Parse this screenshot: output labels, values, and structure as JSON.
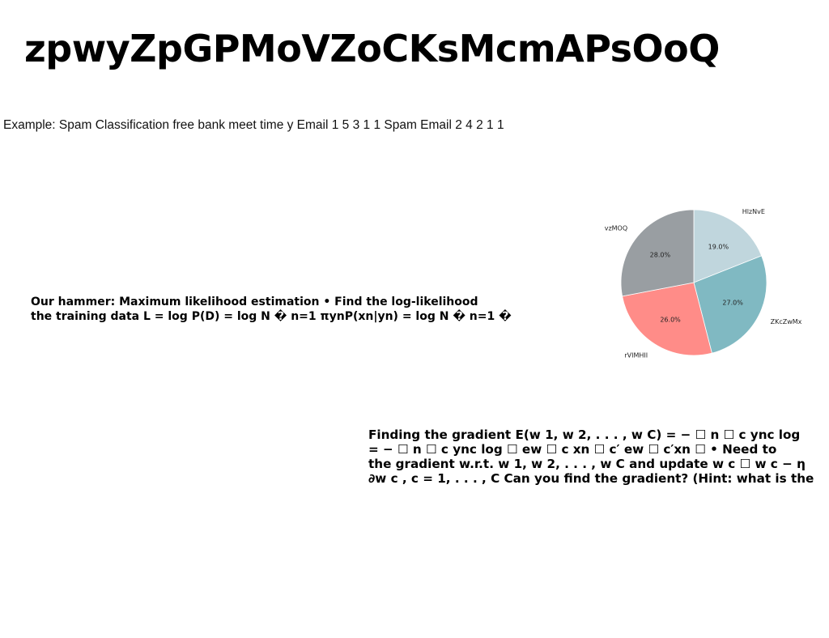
{
  "slide": {
    "title": "zpwyZpGPMoVZoCKsMcmAPsOoQ",
    "example": "Example: Spam Classification free bank meet time y Email 1 5 3 1 1 Spam Email 2 4 2 1 1",
    "hammer_lines": [
      "Our hammer: Maximum likelihood estimation • Find the log-likelihood",
      "the training data L = log P(D) = log N � n=1 πynP(xn|yn) = log N � n=1 �"
    ],
    "gradient_lines": [
      "Finding the gradient E(w 1, w 2, . . . , w C) = − ☐ n ☐ c ync log",
      "= − ☐ n ☐ c ync log ☐ ew ☐ c xn ☐ c′ ew ☐ c′xn ☐ • Need to",
      "the gradient w.r.t. w 1, w 2, . . . , w C and update w c ☐ w c − η",
      "∂w c , c = 1, . . . , C Can you find the gradient? (Hint: what is the"
    ]
  },
  "chart_data": {
    "type": "pie",
    "categories": [
      "HlzNvE",
      "ZKcZwMx",
      "rVIMHII",
      "vzMOQ"
    ],
    "values": [
      19.0,
      27.0,
      26.0,
      28.0
    ],
    "value_labels": [
      "19.0%",
      "27.0%",
      "26.0%",
      "28.0%"
    ],
    "colors": [
      "#c0d6dd",
      "#80b9c2",
      "#ff8c88",
      "#999ea2"
    ],
    "start_angle_deg": 90,
    "direction": "clockwise",
    "title": "",
    "legend": "none"
  }
}
